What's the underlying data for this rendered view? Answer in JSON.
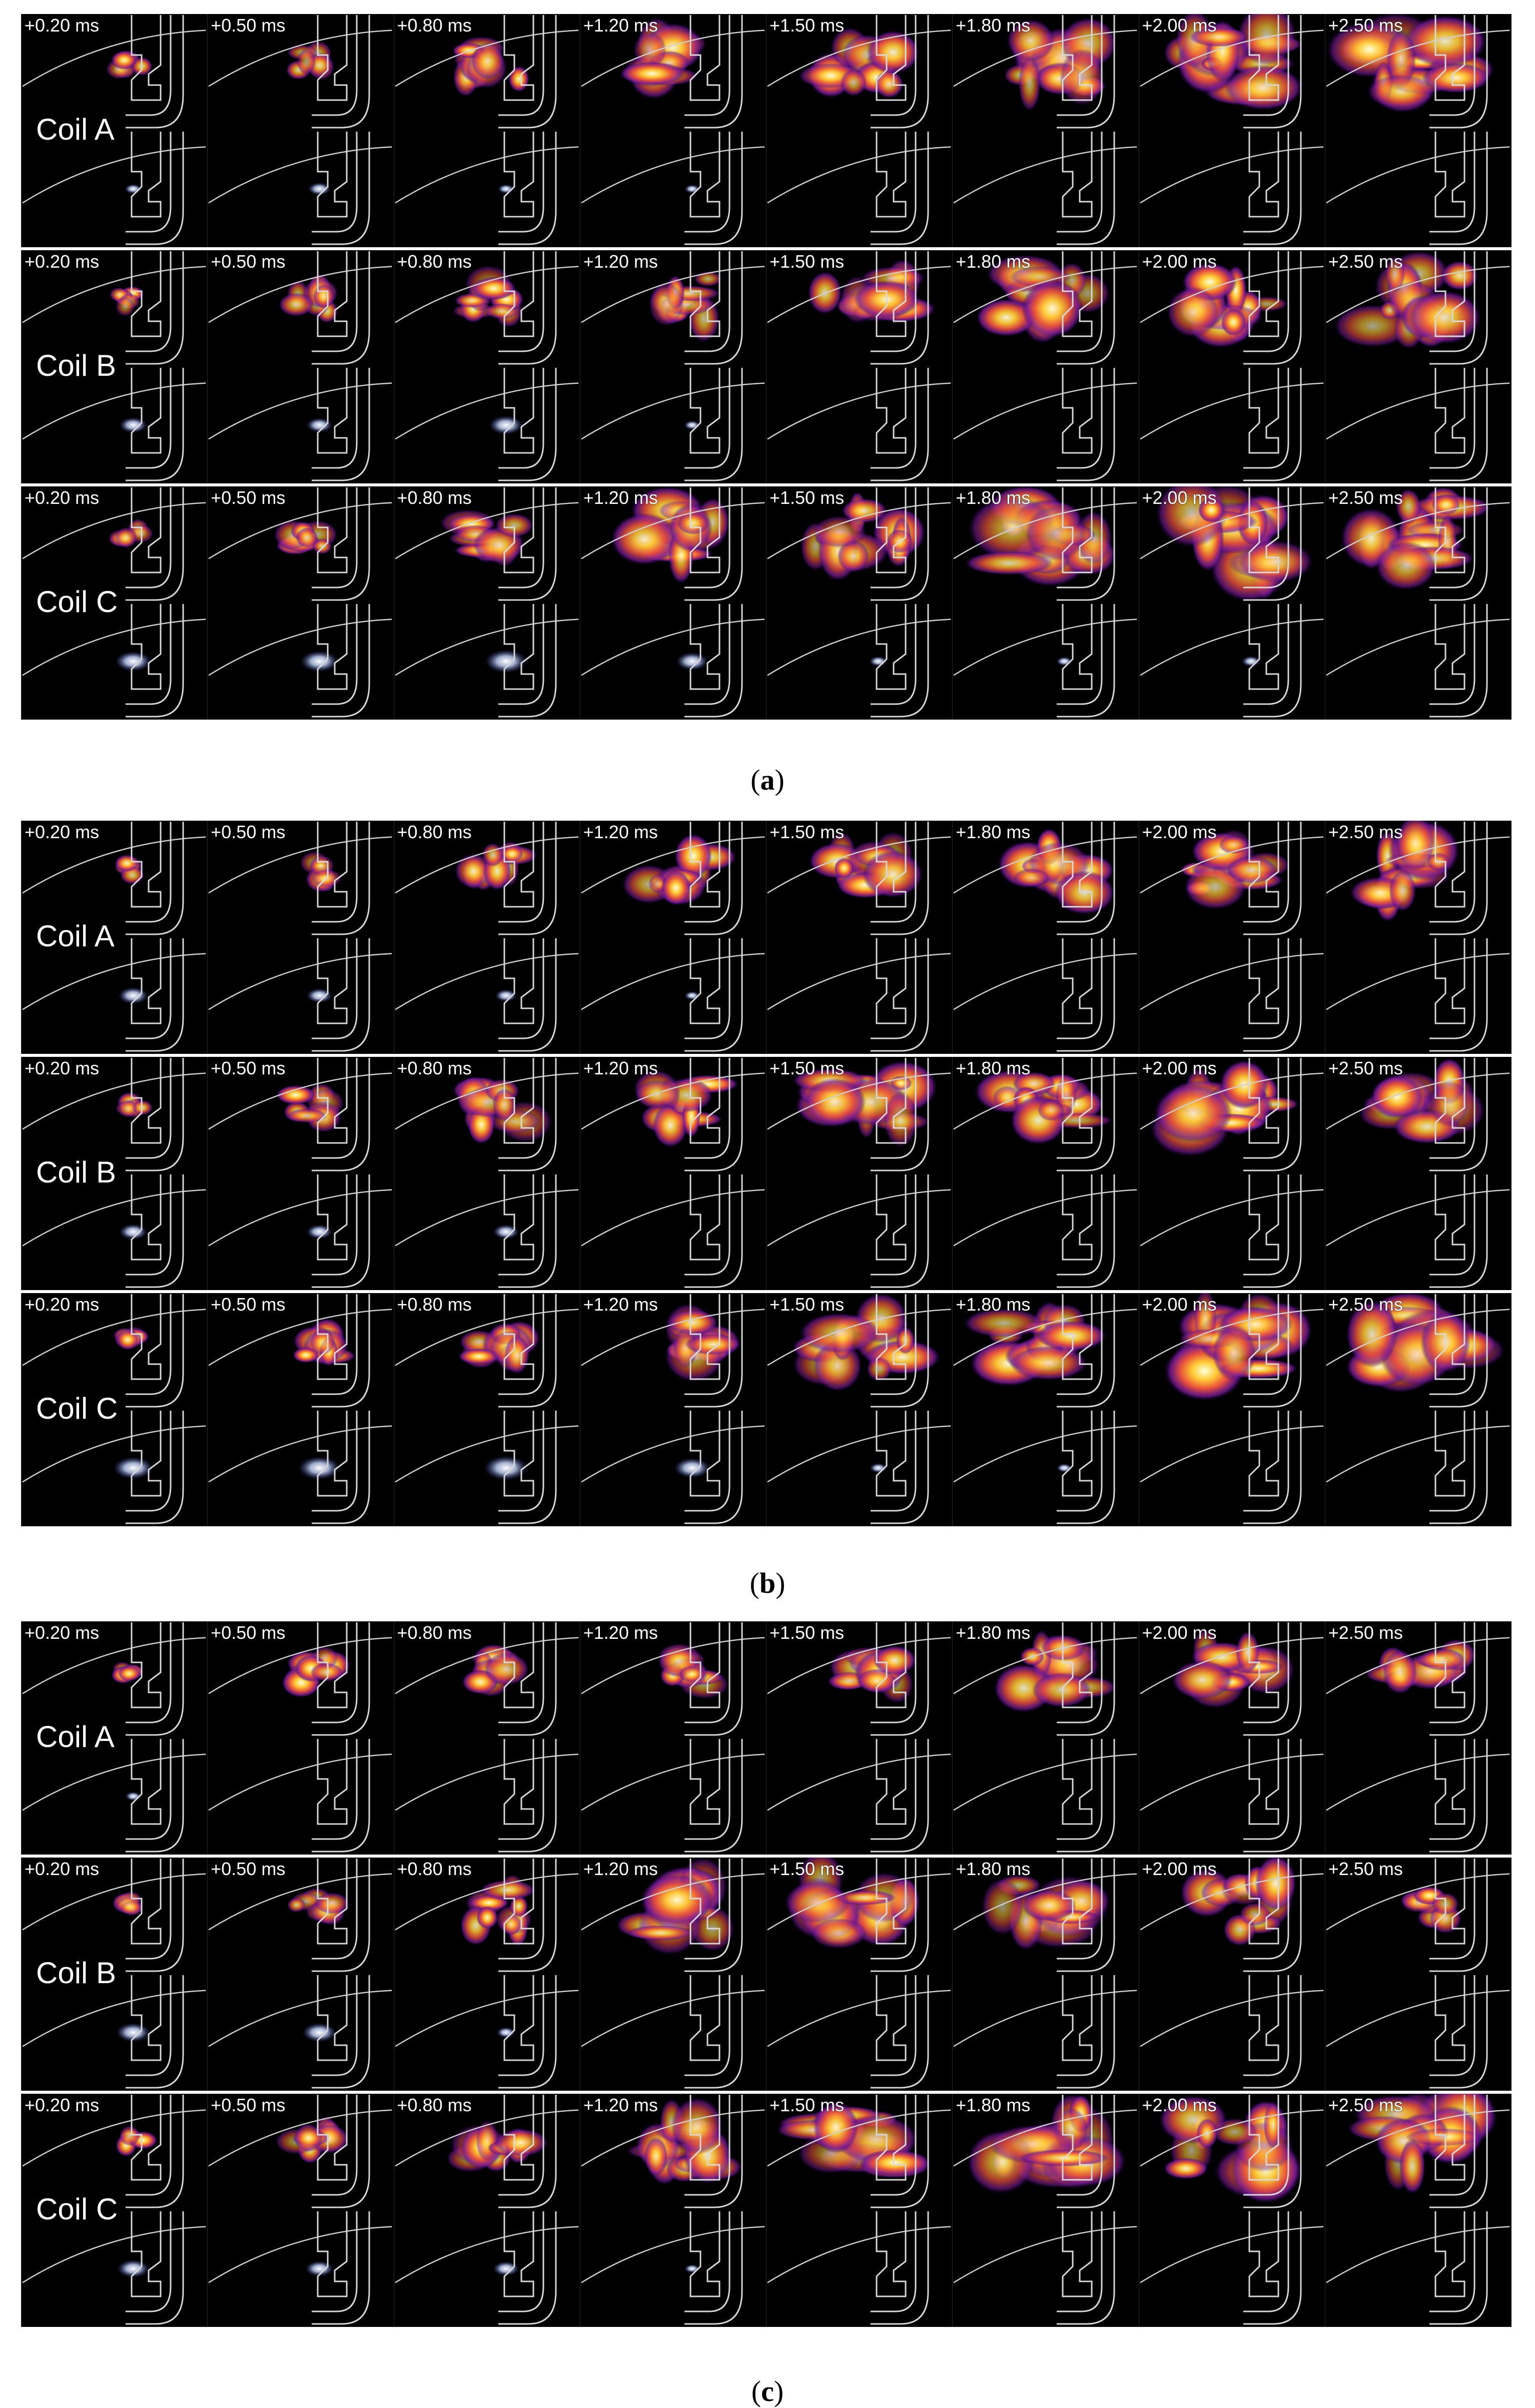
{
  "time_labels": [
    "+0.20 ms",
    "+0.50 ms",
    "+0.80 ms",
    "+1.20 ms",
    "+1.50 ms",
    "+1.80 ms",
    "+2.00 ms",
    "+2.50 ms"
  ],
  "panels": [
    {
      "caption_letter": "a",
      "caption_open": "(",
      "caption_close": ")",
      "coils": [
        {
          "label": "Coil A",
          "flame": [
            0.12,
            0.22,
            0.5,
            0.62,
            0.6,
            0.82,
            0.85,
            0.88
          ],
          "spark": [
            0.08,
            0.22,
            0.06,
            0.03,
            0,
            0,
            0,
            0
          ]
        },
        {
          "label": "Coil B",
          "flame": [
            0.12,
            0.28,
            0.45,
            0.6,
            0.72,
            0.75,
            0.8,
            0.9
          ],
          "spark": [
            0.35,
            0.3,
            0.5,
            0.05,
            0,
            0,
            0,
            0
          ]
        },
        {
          "label": "Coil C",
          "flame": [
            0.12,
            0.3,
            0.5,
            0.7,
            0.82,
            0.9,
            0.95,
            1.0
          ],
          "spark": [
            0.55,
            0.6,
            0.7,
            0.45,
            0.1,
            0.05,
            0.12,
            0
          ]
        }
      ]
    },
    {
      "caption_letter": "b",
      "caption_open": "(",
      "caption_close": ")",
      "coils": [
        {
          "label": "Coil A",
          "flame": [
            0.1,
            0.2,
            0.45,
            0.55,
            0.58,
            0.66,
            0.72,
            0.8
          ],
          "spark": [
            0.4,
            0.3,
            0.2,
            0.03,
            0,
            0,
            0,
            0
          ]
        },
        {
          "label": "Coil B",
          "flame": [
            0.1,
            0.3,
            0.5,
            0.62,
            0.72,
            0.76,
            0.78,
            0.74
          ],
          "spark": [
            0.35,
            0.3,
            0.3,
            0,
            0,
            0,
            0,
            0
          ]
        },
        {
          "label": "Coil C",
          "flame": [
            0.14,
            0.35,
            0.45,
            0.62,
            0.8,
            0.82,
            0.88,
            0.9
          ],
          "spark": [
            0.65,
            0.7,
            0.75,
            0.55,
            0.08,
            0.04,
            0,
            0
          ]
        }
      ]
    },
    {
      "caption_letter": "c",
      "caption_open": "(",
      "caption_close": ")",
      "coils": [
        {
          "label": "Coil A",
          "flame": [
            0.08,
            0.3,
            0.35,
            0.4,
            0.5,
            0.62,
            0.6,
            0.55
          ],
          "spark": [
            0.05,
            0,
            0,
            0,
            0,
            0,
            0,
            0
          ]
        },
        {
          "label": "Coil B",
          "flame": [
            0.12,
            0.3,
            0.55,
            0.75,
            0.8,
            0.8,
            0.7,
            0.3
          ],
          "spark": [
            0.5,
            0.5,
            0.12,
            0,
            0,
            0,
            0,
            0
          ]
        },
        {
          "label": "Coil C",
          "flame": [
            0.14,
            0.3,
            0.5,
            0.75,
            0.85,
            0.95,
            0.9,
            0.85
          ],
          "spark": [
            0.45,
            0.35,
            0.3,
            0.03,
            0,
            0,
            0,
            0
          ]
        }
      ]
    }
  ]
}
